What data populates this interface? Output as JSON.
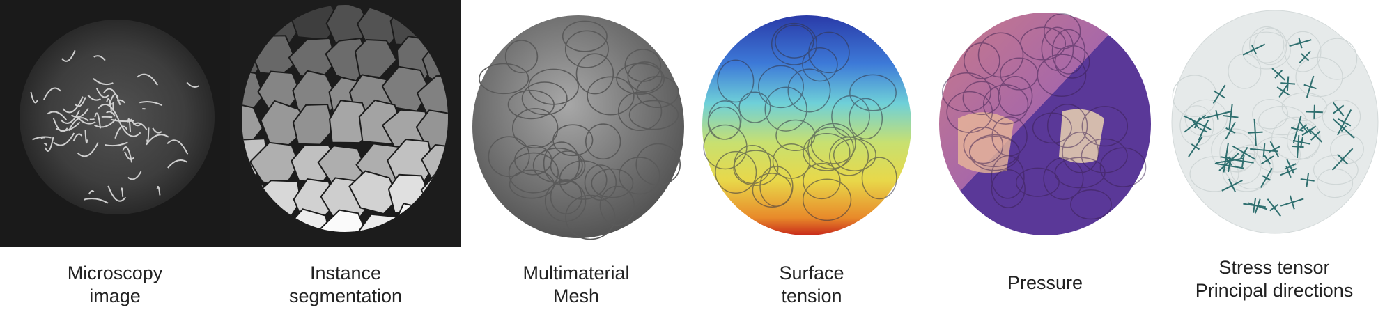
{
  "panels": [
    {
      "id": "microscopy",
      "caption_line1": "Microscopy",
      "caption_line2": "image"
    },
    {
      "id": "segmentation",
      "caption_line1": "Instance",
      "caption_line2": "segmentation"
    },
    {
      "id": "mesh",
      "caption_line1": "Multimaterial",
      "caption_line2": "Mesh"
    },
    {
      "id": "tension",
      "caption_line1": "Surface",
      "caption_line2": "tension"
    },
    {
      "id": "pressure",
      "caption_line1": "Pressure"
    },
    {
      "id": "stress",
      "caption_line1": "Stress tensor",
      "caption_line2": "Principal directions"
    }
  ],
  "colors": {
    "microscopy_bg": "#1a1a1a",
    "segmentation_bg": "#1c1c1c",
    "mesh_gray": "#8a8a8a",
    "tension_top": "#2a3aa8",
    "tension_mid": "#6fd0d8",
    "tension_yellow": "#e8d84a",
    "tension_red": "#c82a1a",
    "pressure_purple": "#7a48a8",
    "pressure_pink": "#c87a8a",
    "pressure_peach": "#e8c8a8",
    "stress_bg": "#e6eaea",
    "stress_mark": "#2f6f6f"
  }
}
